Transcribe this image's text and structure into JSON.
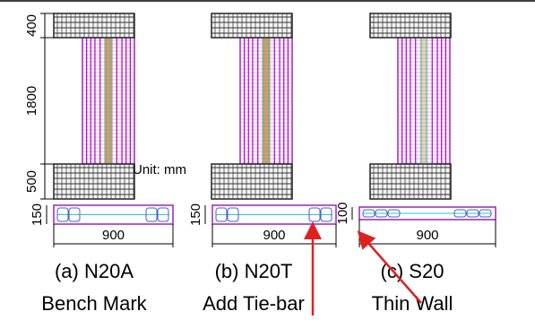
{
  "unit_note": "Unit: mm",
  "elevation_dimensions": [
    "400",
    "1800",
    "500"
  ],
  "specimens": [
    {
      "label": "(a) N20A",
      "description": "Bench Mark",
      "section_depth": "150",
      "section_width": "900"
    },
    {
      "label": "(b) N20T",
      "description": "Add Tie-bar",
      "section_depth": "150",
      "section_width": "900"
    },
    {
      "label": "(c) S20",
      "description": "Thin Wall",
      "section_depth": "100",
      "section_width": "900"
    }
  ]
}
